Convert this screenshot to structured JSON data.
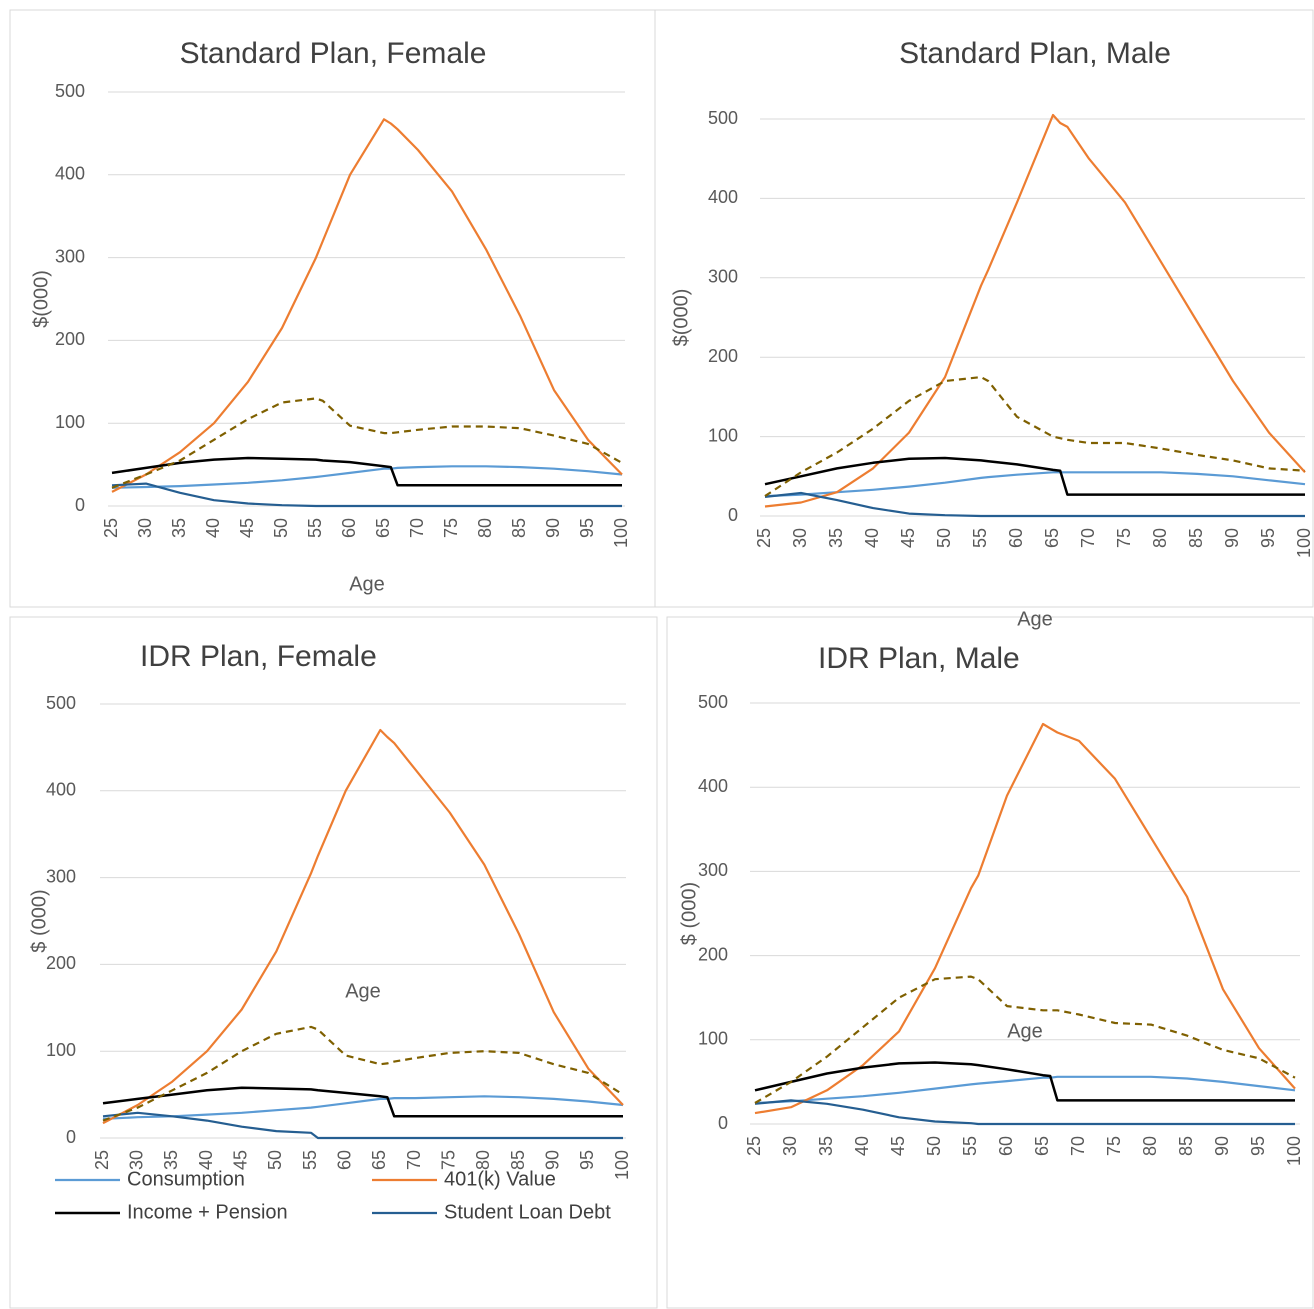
{
  "chart_data": [
    {
      "type": "line",
      "title": "Standard Plan, Female",
      "x_label": "Age",
      "y_label": "$(000)",
      "x": [
        25,
        30,
        35,
        40,
        45,
        50,
        55,
        56,
        60,
        65,
        66,
        67,
        70,
        75,
        80,
        85,
        90,
        95,
        100
      ],
      "xlim": [
        25,
        100
      ],
      "xticks": [
        25,
        30,
        35,
        40,
        45,
        50,
        55,
        60,
        65,
        70,
        75,
        80,
        85,
        90,
        95,
        100
      ],
      "ylim": [
        0,
        500
      ],
      "yticks": [
        0,
        100,
        200,
        300,
        400,
        500
      ],
      "grid": true,
      "series": [
        {
          "color": "#5b9bd5",
          "values": [
            22,
            23,
            24,
            26,
            28,
            31,
            35,
            36,
            40,
            45,
            45,
            46,
            47,
            48,
            48,
            47,
            45,
            42,
            38
          ]
        },
        {
          "color": "#ed7d31",
          "values": [
            17,
            38,
            65,
            100,
            150,
            215,
            300,
            320,
            400,
            467,
            462,
            455,
            430,
            380,
            310,
            230,
            140,
            80,
            38
          ]
        },
        {
          "color": "#000000",
          "values": [
            40,
            46,
            52,
            56,
            58,
            57,
            56,
            55,
            53,
            48,
            47,
            25,
            25,
            25,
            25,
            25,
            25,
            25,
            25
          ]
        },
        {
          "color": "#255e91",
          "values": [
            25,
            27,
            16,
            7,
            3,
            1,
            0,
            0,
            0,
            0,
            0,
            0,
            0,
            0,
            0,
            0,
            0,
            0,
            0
          ]
        },
        {
          "color": "#7f6000",
          "style": "dashed",
          "values": [
            22,
            38,
            55,
            80,
            105,
            125,
            130,
            127,
            97,
            88,
            88,
            89,
            92,
            96,
            96,
            94,
            85,
            75,
            52
          ]
        }
      ]
    },
    {
      "type": "line",
      "title": "Standard Plan, Male",
      "x_label": "Age",
      "y_label": "$(000)",
      "x": [
        25,
        30,
        35,
        40,
        45,
        50,
        55,
        56,
        60,
        65,
        66,
        67,
        70,
        75,
        80,
        85,
        90,
        95,
        100
      ],
      "xlim": [
        25,
        100
      ],
      "xticks": [
        25,
        30,
        35,
        40,
        45,
        50,
        55,
        60,
        65,
        70,
        75,
        80,
        85,
        90,
        95,
        100
      ],
      "ylim": [
        0,
        500
      ],
      "yticks": [
        0,
        100,
        200,
        300,
        400,
        500
      ],
      "grid": true,
      "series": [
        {
          "color": "#5b9bd5",
          "values": [
            25,
            27,
            30,
            33,
            37,
            42,
            48,
            49,
            52,
            55,
            55,
            55,
            55,
            55,
            55,
            53,
            50,
            45,
            40
          ]
        },
        {
          "color": "#ed7d31",
          "values": [
            12,
            17,
            30,
            60,
            105,
            175,
            290,
            310,
            395,
            505,
            495,
            490,
            450,
            395,
            320,
            245,
            170,
            105,
            55
          ]
        },
        {
          "color": "#000000",
          "values": [
            40,
            50,
            60,
            67,
            72,
            73,
            70,
            69,
            65,
            58,
            57,
            27,
            27,
            27,
            27,
            27,
            27,
            27,
            27
          ]
        },
        {
          "color": "#255e91",
          "values": [
            24,
            29,
            20,
            10,
            3,
            1,
            0,
            0,
            0,
            0,
            0,
            0,
            0,
            0,
            0,
            0,
            0,
            0,
            0
          ]
        },
        {
          "color": "#7f6000",
          "style": "dashed",
          "values": [
            25,
            55,
            80,
            110,
            145,
            170,
            175,
            170,
            125,
            100,
            98,
            96,
            92,
            92,
            85,
            77,
            70,
            60,
            57
          ]
        }
      ]
    },
    {
      "type": "line",
      "title": "IDR Plan, Female",
      "x_label": "Age",
      "y_label": "$ (000)",
      "x": [
        25,
        30,
        35,
        40,
        45,
        50,
        55,
        56,
        60,
        65,
        66,
        67,
        70,
        75,
        80,
        85,
        90,
        95,
        100
      ],
      "xlim": [
        25,
        100
      ],
      "xticks": [
        25,
        30,
        35,
        40,
        45,
        50,
        55,
        60,
        65,
        70,
        75,
        80,
        85,
        90,
        95,
        100
      ],
      "ylim": [
        0,
        500
      ],
      "yticks": [
        0,
        100,
        200,
        300,
        400,
        500
      ],
      "grid": true,
      "legend": "bottom",
      "series": [
        {
          "name": "Consumption",
          "color": "#5b9bd5",
          "values": [
            22,
            24,
            25,
            27,
            29,
            32,
            35,
            36,
            40,
            45,
            45,
            46,
            46,
            47,
            48,
            47,
            45,
            42,
            38
          ]
        },
        {
          "name": "401(k) Value",
          "color": "#ed7d31",
          "values": [
            17,
            38,
            65,
            100,
            148,
            215,
            305,
            325,
            400,
            470,
            462,
            455,
            425,
            375,
            315,
            235,
            145,
            80,
            38
          ]
        },
        {
          "name": "Income + Pension",
          "color": "#000000",
          "values": [
            40,
            45,
            50,
            55,
            58,
            57,
            56,
            55,
            52,
            48,
            47,
            25,
            25,
            25,
            25,
            25,
            25,
            25,
            25
          ]
        },
        {
          "name": "Student Loan Debt",
          "color": "#255e91",
          "values": [
            25,
            29,
            25,
            20,
            13,
            8,
            6,
            0,
            0,
            0,
            0,
            0,
            0,
            0,
            0,
            0,
            0,
            0,
            0
          ]
        },
        {
          "color": "#7f6000",
          "style": "dashed",
          "values": [
            20,
            35,
            55,
            75,
            100,
            120,
            128,
            125,
            95,
            85,
            86,
            88,
            92,
            98,
            100,
            98,
            85,
            75,
            50
          ]
        }
      ]
    },
    {
      "type": "line",
      "title": "IDR Plan, Male",
      "x_label": "Age",
      "y_label": "$ (000)",
      "x": [
        25,
        30,
        35,
        40,
        45,
        50,
        55,
        56,
        60,
        65,
        66,
        67,
        70,
        75,
        80,
        85,
        90,
        95,
        100
      ],
      "xlim": [
        25,
        100
      ],
      "xticks": [
        25,
        30,
        35,
        40,
        45,
        50,
        55,
        60,
        65,
        70,
        75,
        80,
        85,
        90,
        95,
        100
      ],
      "ylim": [
        0,
        500
      ],
      "yticks": [
        0,
        100,
        200,
        300,
        400,
        500
      ],
      "grid": true,
      "series": [
        {
          "color": "#5b9bd5",
          "values": [
            25,
            27,
            30,
            33,
            37,
            42,
            47,
            48,
            51,
            55,
            55,
            56,
            56,
            56,
            56,
            54,
            50,
            45,
            40
          ]
        },
        {
          "color": "#ed7d31",
          "values": [
            13,
            20,
            40,
            70,
            110,
            185,
            280,
            295,
            390,
            475,
            470,
            465,
            455,
            410,
            340,
            270,
            160,
            90,
            42
          ]
        },
        {
          "color": "#000000",
          "values": [
            40,
            50,
            60,
            67,
            72,
            73,
            71,
            70,
            65,
            58,
            57,
            28,
            28,
            28,
            28,
            28,
            28,
            28,
            28
          ]
        },
        {
          "color": "#255e91",
          "values": [
            24,
            28,
            24,
            17,
            8,
            3,
            1,
            0,
            0,
            0,
            0,
            0,
            0,
            0,
            0,
            0,
            0,
            0,
            0
          ]
        },
        {
          "color": "#7f6000",
          "style": "dashed",
          "values": [
            25,
            50,
            80,
            115,
            150,
            172,
            175,
            172,
            140,
            135,
            135,
            135,
            130,
            120,
            118,
            105,
            88,
            78,
            55
          ]
        }
      ]
    }
  ]
}
